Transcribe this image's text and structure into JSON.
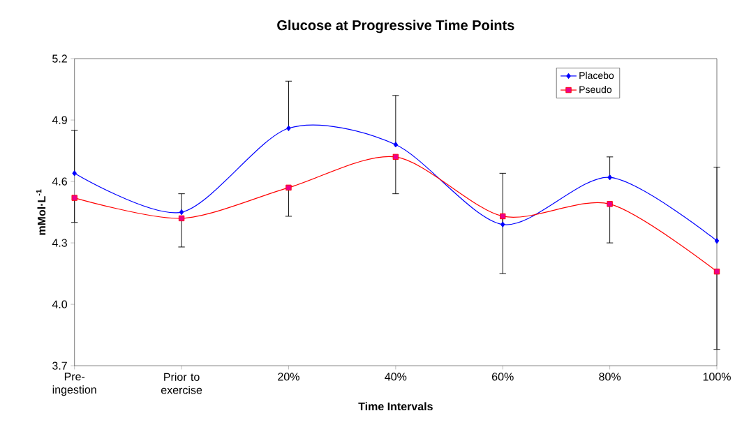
{
  "chart_data": {
    "type": "line",
    "title": "Glucose at Progressive Time Points",
    "xlabel": "Time Intervals",
    "ylabel": "mMol·L$^{-1}$",
    "categories": [
      "Pre-ingestion",
      "Prior to exercise",
      "20%",
      "40%",
      "60%",
      "80%",
      "100%"
    ],
    "series": [
      {
        "name": "Placebo",
        "color": "#0000ff",
        "marker": "diamond",
        "values": [
          4.64,
          4.45,
          4.86,
          4.78,
          4.39,
          4.62,
          4.31
        ],
        "errors": [
          [
            4.64,
            4.85
          ],
          [
            4.45,
            4.54
          ],
          [
            4.86,
            5.09
          ],
          [
            4.78,
            5.02
          ],
          [
            4.39,
            4.64
          ],
          [
            4.62,
            4.72
          ],
          [
            4.31,
            4.67
          ]
        ]
      },
      {
        "name": "Pseudo",
        "color": "#ff0000",
        "marker": "square",
        "values": [
          4.52,
          4.42,
          4.57,
          4.72,
          4.43,
          4.49,
          4.16
        ],
        "errors": [
          [
            4.4,
            4.52
          ],
          [
            4.28,
            4.42
          ],
          [
            4.43,
            4.57
          ],
          [
            4.54,
            4.72
          ],
          [
            4.15,
            4.43
          ],
          [
            4.3,
            4.49
          ],
          [
            3.78,
            4.16
          ]
        ]
      }
    ],
    "ylim": [
      3.7,
      5.2
    ],
    "yticks": [
      {
        "value": 3.7,
        "label": "3.7"
      },
      {
        "value": 4.0,
        "label": "4.0"
      },
      {
        "value": 4.3,
        "label": "4.3"
      },
      {
        "value": 4.6,
        "label": "4.6"
      },
      {
        "value": 4.9,
        "label": "4.9"
      },
      {
        "value": 5.2,
        "label": "5.2"
      }
    ],
    "grid": false,
    "legend": "top right"
  }
}
